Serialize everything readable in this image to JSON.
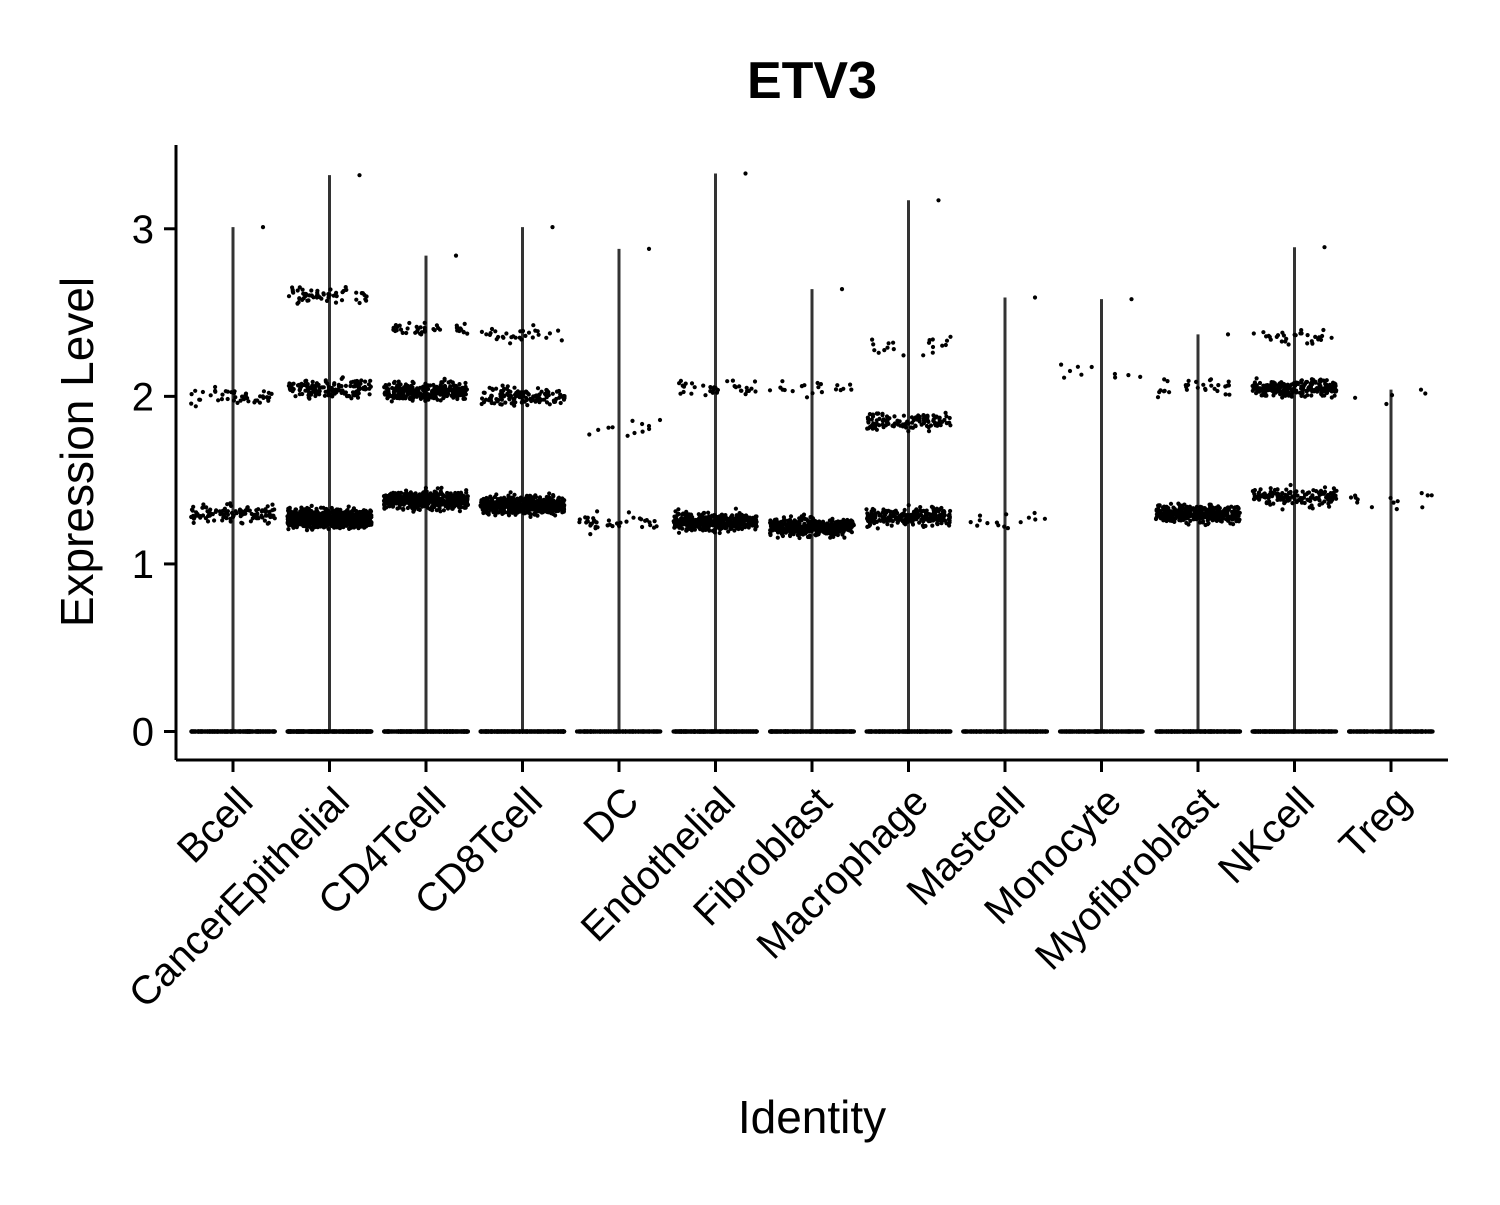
{
  "chart_data": {
    "type": "scatter",
    "subtype": "violin-jitter",
    "title": "ETV3",
    "xlabel": "Identity",
    "ylabel": "Expression Level",
    "ylim": [
      -0.17,
      3.5
    ],
    "yticks": [
      0,
      1,
      2,
      3
    ],
    "ytick_labels": [
      "0",
      "1",
      "2",
      "3"
    ],
    "grid": false,
    "legend": "none",
    "point_color": "#000000",
    "violin_color": "#333333",
    "categories": [
      "Bcell",
      "CancerEpithelial",
      "CD4Tcell",
      "CD8Tcell",
      "DC",
      "Endothelial",
      "Fibroblast",
      "Macrophage",
      "Mastcell",
      "Monocyte",
      "Myofibroblast",
      "NKcell",
      "Treg"
    ],
    "max_values": [
      3.01,
      3.32,
      2.84,
      3.01,
      2.88,
      3.33,
      2.64,
      3.17,
      2.59,
      2.58,
      2.37,
      2.89,
      2.04
    ],
    "expression_clusters": [
      {
        "category": "Bcell",
        "levels": [
          [
            0,
            400
          ],
          [
            1.3,
            120
          ],
          [
            2.0,
            45
          ]
        ]
      },
      {
        "category": "CancerEpithelial",
        "levels": [
          [
            0,
            600
          ],
          [
            1.27,
            900
          ],
          [
            2.05,
            150
          ],
          [
            2.6,
            60
          ]
        ]
      },
      {
        "category": "CD4Tcell",
        "levels": [
          [
            0,
            500
          ],
          [
            1.38,
            500
          ],
          [
            2.03,
            300
          ],
          [
            2.4,
            40
          ]
        ]
      },
      {
        "category": "CD8Tcell",
        "levels": [
          [
            0,
            450
          ],
          [
            1.35,
            550
          ],
          [
            2.0,
            130
          ],
          [
            2.37,
            30
          ]
        ]
      },
      {
        "category": "DC",
        "levels": [
          [
            0,
            300
          ],
          [
            1.25,
            40
          ],
          [
            1.8,
            12
          ]
        ]
      },
      {
        "category": "Endothelial",
        "levels": [
          [
            0,
            450
          ],
          [
            1.25,
            400
          ],
          [
            2.05,
            35
          ]
        ]
      },
      {
        "category": "Fibroblast",
        "levels": [
          [
            0,
            450
          ],
          [
            1.22,
            450
          ],
          [
            2.05,
            20
          ]
        ]
      },
      {
        "category": "Macrophage",
        "levels": [
          [
            0,
            400
          ],
          [
            1.28,
            250
          ],
          [
            1.85,
            120
          ],
          [
            2.3,
            20
          ]
        ]
      },
      {
        "category": "Mastcell",
        "levels": [
          [
            0,
            300
          ],
          [
            1.27,
            15
          ]
        ]
      },
      {
        "category": "Monocyte",
        "levels": [
          [
            0,
            300
          ],
          [
            2.15,
            10
          ]
        ]
      },
      {
        "category": "Myofibroblast",
        "levels": [
          [
            0,
            400
          ],
          [
            1.3,
            350
          ],
          [
            2.05,
            30
          ]
        ]
      },
      {
        "category": "NKcell",
        "levels": [
          [
            0,
            400
          ],
          [
            1.4,
            150
          ],
          [
            2.05,
            250
          ],
          [
            2.35,
            30
          ]
        ]
      },
      {
        "category": "Treg",
        "levels": [
          [
            0,
            300
          ],
          [
            1.38,
            14
          ],
          [
            2.0,
            4
          ]
        ]
      }
    ]
  }
}
